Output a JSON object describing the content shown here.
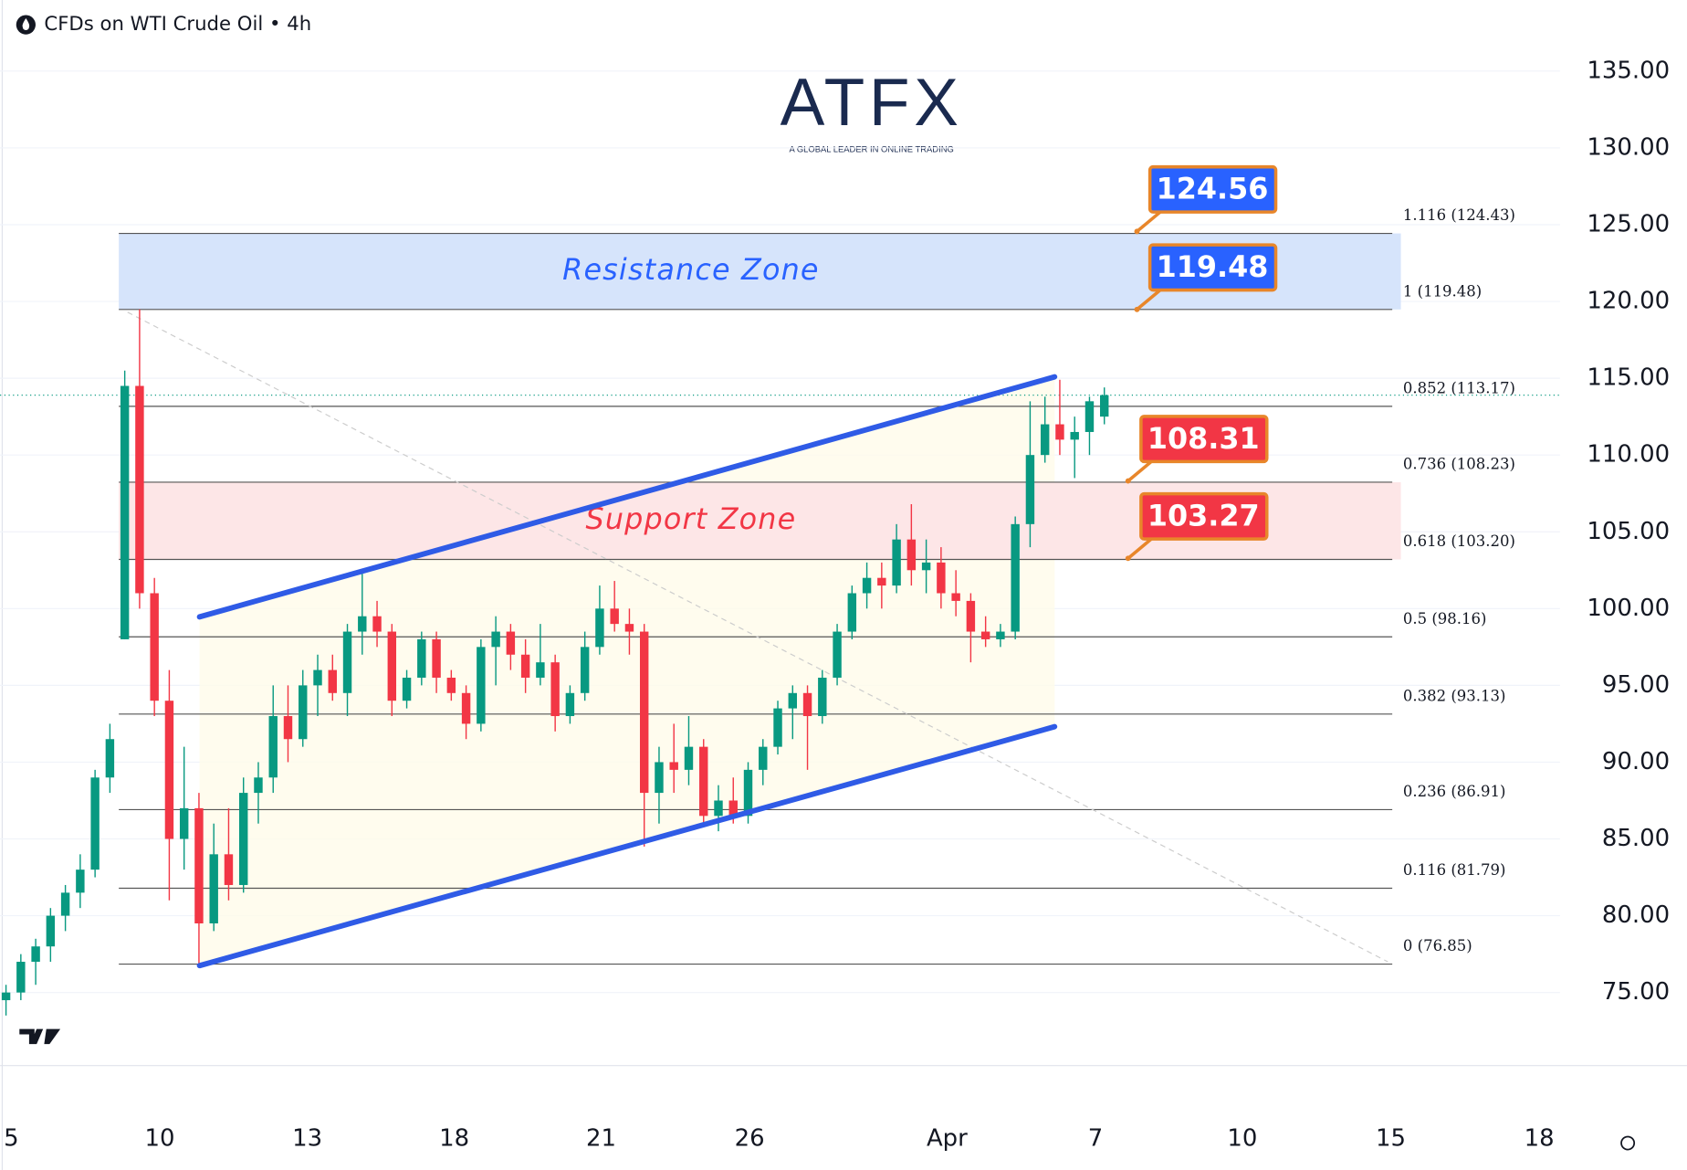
{
  "chart_data": {
    "type": "candlestick",
    "header": "CFDs on WTI Crude Oil • 4h",
    "logo": {
      "title": "ATFX",
      "tagline": "A GLOBAL LEADER IN ONLINE TRADING"
    },
    "up_color": "#089981",
    "down_color": "#f23645",
    "xlim": [
      -0.4,
      104.7
    ],
    "ylim": [
      70.24,
      139.63
    ],
    "yticks": [
      {
        "value": 135,
        "label": "135.00"
      },
      {
        "value": 130,
        "label": "130.00"
      },
      {
        "value": 125,
        "label": "125.00"
      },
      {
        "value": 120,
        "label": "120.00"
      },
      {
        "value": 115,
        "label": "115.00"
      },
      {
        "value": 110,
        "label": "110.00"
      },
      {
        "value": 105,
        "label": "105.00"
      },
      {
        "value": 100,
        "label": "100.00"
      },
      {
        "value": 95,
        "label": "95.00"
      },
      {
        "value": 90,
        "label": "90.00"
      },
      {
        "value": 85,
        "label": "85.00"
      },
      {
        "value": 80,
        "label": "80.00"
      },
      {
        "value": 75,
        "label": "75.00"
      }
    ],
    "xticks": [
      {
        "value": 0.36,
        "label": "5"
      },
      {
        "value": 10.36,
        "label": "10"
      },
      {
        "value": 20.3,
        "label": "13"
      },
      {
        "value": 30.2,
        "label": "18"
      },
      {
        "value": 40.1,
        "label": "21"
      },
      {
        "value": 50.1,
        "label": "26"
      },
      {
        "value": 63.4,
        "label": "Apr"
      },
      {
        "value": 73.4,
        "label": "7"
      },
      {
        "value": 83.3,
        "label": "10"
      },
      {
        "value": 93.3,
        "label": "15"
      },
      {
        "value": 103.3,
        "label": "18"
      }
    ],
    "grid": true,
    "ohlc": [
      [
        74.5,
        75.5,
        73.5,
        75
      ],
      [
        75,
        77.5,
        74.5,
        77
      ],
      [
        77,
        78.5,
        75.5,
        78
      ],
      [
        78,
        80.5,
        77,
        80
      ],
      [
        80,
        82,
        79,
        81.5
      ],
      [
        81.5,
        84,
        80.5,
        83
      ],
      [
        83,
        89.5,
        82.5,
        89
      ],
      [
        89,
        92.5,
        88,
        91.5
      ],
      [
        98,
        115.5,
        98,
        114.5
      ],
      [
        114.5,
        119.48,
        100,
        101
      ],
      [
        101,
        102,
        93,
        94
      ],
      [
        94,
        96,
        81,
        85
      ],
      [
        85,
        91,
        83,
        87
      ],
      [
        87,
        88,
        76.85,
        79.5
      ],
      [
        79.5,
        86,
        79,
        84
      ],
      [
        84,
        87,
        81,
        82
      ],
      [
        82,
        89,
        81.5,
        88
      ],
      [
        88,
        90,
        86,
        89
      ],
      [
        89,
        95,
        88,
        93
      ],
      [
        93,
        95,
        90,
        91.5
      ],
      [
        91.5,
        96,
        91,
        95
      ],
      [
        95,
        97,
        93,
        96
      ],
      [
        96,
        97,
        94,
        94.5
      ],
      [
        94.5,
        99,
        93,
        98.5
      ],
      [
        98.5,
        102.3,
        97,
        99.5
      ],
      [
        99.5,
        100.5,
        97.5,
        98.5
      ],
      [
        98.5,
        99,
        93,
        94
      ],
      [
        94,
        96,
        93.5,
        95.5
      ],
      [
        95.5,
        98.5,
        95,
        98
      ],
      [
        98,
        98.5,
        94.5,
        95.5
      ],
      [
        95.5,
        96,
        94,
        94.5
      ],
      [
        94.5,
        95,
        91.5,
        92.5
      ],
      [
        92.5,
        98,
        92,
        97.5
      ],
      [
        97.5,
        99.5,
        95,
        98.5
      ],
      [
        98.5,
        99,
        96,
        97
      ],
      [
        97,
        98,
        94.5,
        95.5
      ],
      [
        95.5,
        99,
        95,
        96.5
      ],
      [
        96.5,
        97,
        92,
        93
      ],
      [
        93,
        95,
        92.5,
        94.5
      ],
      [
        94.5,
        98.5,
        94,
        97.5
      ],
      [
        97.5,
        101.5,
        97,
        100
      ],
      [
        100,
        101.8,
        98.5,
        99
      ],
      [
        99,
        100,
        97,
        98.5
      ],
      [
        98.5,
        99,
        84.5,
        88
      ],
      [
        88,
        91,
        86,
        90
      ],
      [
        90,
        92.5,
        88,
        89.5
      ],
      [
        89.5,
        93,
        88.5,
        91
      ],
      [
        91,
        91.5,
        86,
        86.5
      ],
      [
        86.5,
        88.5,
        85.5,
        87.5
      ],
      [
        87.5,
        89,
        86,
        86.5
      ],
      [
        86.5,
        90,
        86,
        89.5
      ],
      [
        89.5,
        91.5,
        88.5,
        91
      ],
      [
        91,
        94,
        90.5,
        93.5
      ],
      [
        93.5,
        95,
        91.5,
        94.5
      ],
      [
        94.5,
        95,
        89.5,
        93
      ],
      [
        93,
        96,
        92.5,
        95.5
      ],
      [
        95.5,
        99,
        95,
        98.5
      ],
      [
        98.5,
        101.5,
        98,
        101
      ],
      [
        101,
        103,
        100,
        102
      ],
      [
        102,
        103,
        100,
        101.5
      ],
      [
        101.5,
        105.5,
        101,
        104.5
      ],
      [
        104.5,
        106.8,
        101.5,
        102.5
      ],
      [
        102.5,
        104.5,
        101,
        103
      ],
      [
        103,
        104,
        100,
        101
      ],
      [
        101,
        102.5,
        99.5,
        100.5
      ],
      [
        100.5,
        101,
        96.5,
        98.5
      ],
      [
        98.5,
        99.5,
        97.5,
        98
      ],
      [
        98,
        99,
        97.5,
        98.5
      ],
      [
        98.5,
        106,
        98,
        105.5
      ],
      [
        105.5,
        113.5,
        104,
        110
      ],
      [
        110,
        113.8,
        109.5,
        112
      ],
      [
        112,
        114.9,
        110,
        111
      ],
      [
        111,
        112.5,
        108.5,
        111.5
      ],
      [
        111.5,
        113.8,
        110,
        113.5
      ],
      [
        112.5,
        114.4,
        112,
        113.9
      ]
    ],
    "fib_start": 7.6,
    "fib_end": 93.4,
    "fib_levels": [
      {
        "price": 124.43,
        "label": "1.116 (124.43)"
      },
      {
        "price": 119.48,
        "label": "1 (119.48)"
      },
      {
        "price": 113.17,
        "label": "0.852 (113.17)"
      },
      {
        "price": 108.23,
        "label": "0.736 (108.23)"
      },
      {
        "price": 103.2,
        "label": "0.618 (103.20)"
      },
      {
        "price": 98.16,
        "label": "0.5 (98.16)"
      },
      {
        "price": 93.13,
        "label": "0.382 (93.13)"
      },
      {
        "price": 86.91,
        "label": "0.236 (86.91)"
      },
      {
        "price": 81.79,
        "label": "0.116 (81.79)"
      },
      {
        "price": 76.85,
        "label": "0 (76.85)"
      }
    ],
    "zones": [
      {
        "label": "Resistance Zone",
        "low": 119.48,
        "high": 124.43,
        "fill": "#d6e4fb",
        "text_color": "#2962ff"
      },
      {
        "label": "Support Zone",
        "low": 103.2,
        "high": 108.23,
        "fill": "#fde6e7",
        "text_color": "#f23645"
      }
    ],
    "channel": {
      "color": "#2f5be6",
      "upper": {
        "x": [
          13.04,
          70.65
        ],
        "y": [
          99.46,
          115.09
        ]
      },
      "lower": {
        "x": [
          13.04,
          70.65
        ],
        "y": [
          76.75,
          92.31
        ]
      }
    },
    "diagonal": {
      "x": [
        8.19,
        93.1
      ],
      "y": [
        119.3,
        77.0
      ]
    },
    "callouts": [
      {
        "x": 76.2,
        "value": 124.56,
        "color": "#2962ff"
      },
      {
        "x": 76.2,
        "value": 119.48,
        "color": "#2962ff"
      },
      {
        "x": 75.6,
        "value": 108.31,
        "color": "#f23645"
      },
      {
        "x": 75.6,
        "value": 103.27,
        "color": "#f23645"
      }
    ]
  }
}
